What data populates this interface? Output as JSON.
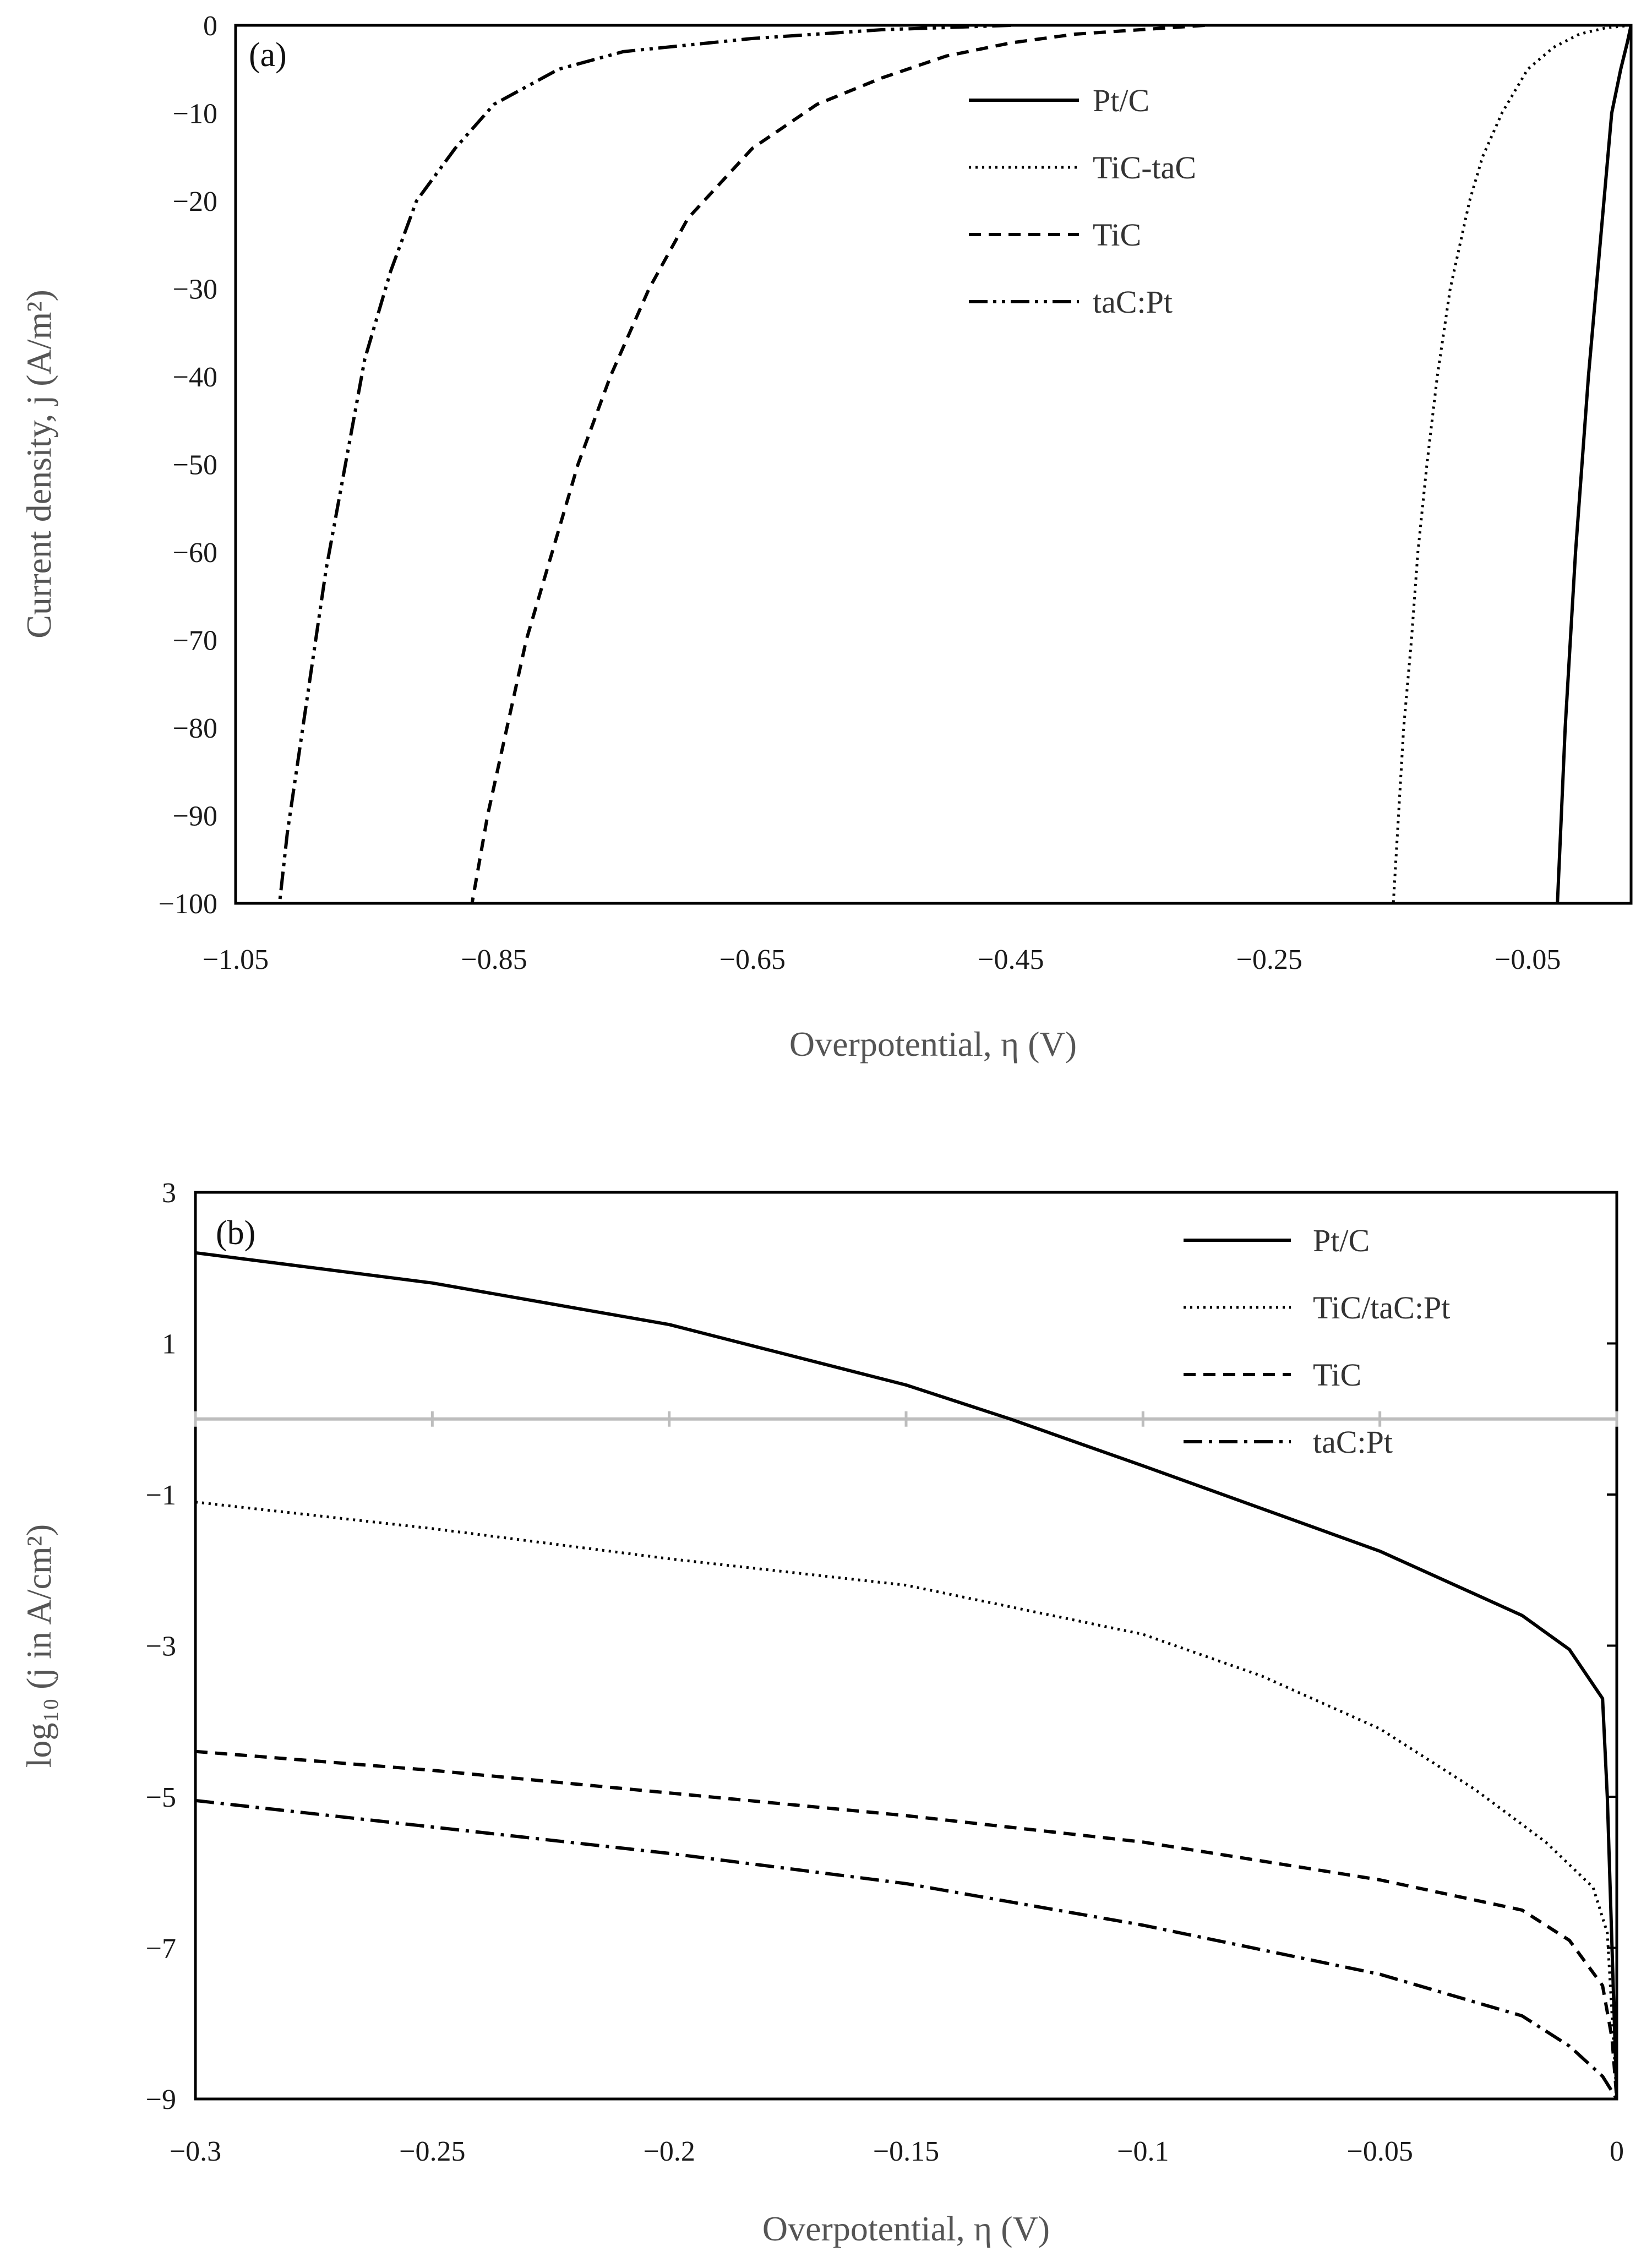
{
  "chart_data": [
    {
      "type": "line",
      "panel_label": "(a)",
      "xlabel": "Overpotential, η (V)",
      "ylabel": "Current density, j (A/m²)",
      "xlim": [
        -1.05,
        0.03
      ],
      "ylim": [
        -100,
        0
      ],
      "x_ticks": [
        -1.05,
        -0.85,
        -0.65,
        -0.45,
        -0.25,
        -0.05
      ],
      "x_tick_labels": [
        "−1.05",
        "−0.85",
        "−0.65",
        "−0.45",
        "−0.25",
        "−0.05"
      ],
      "y_ticks": [
        0,
        -10,
        -20,
        -30,
        -40,
        -50,
        -60,
        -70,
        -80,
        -90,
        -100
      ],
      "y_tick_labels": [
        "0",
        "−10",
        "−20",
        "−30",
        "−40",
        "−50",
        "−60",
        "−70",
        "−80",
        "−90",
        "−100"
      ],
      "grid": false,
      "legend_position": "top-right",
      "series": [
        {
          "name": "Pt/C",
          "style": "solid",
          "points": [
            [
              0.03,
              0
            ],
            [
              0.027,
              -2
            ],
            [
              0.022,
              -5
            ],
            [
              0.015,
              -10
            ],
            [
              0.009,
              -20
            ],
            [
              0.003,
              -30
            ],
            [
              -0.003,
              -40
            ],
            [
              -0.008,
              -50
            ],
            [
              -0.013,
              -60
            ],
            [
              -0.017,
              -70
            ],
            [
              -0.021,
              -80
            ],
            [
              -0.024,
              -90
            ],
            [
              -0.027,
              -100
            ]
          ]
        },
        {
          "name": "TiC-taC",
          "style": "dotted",
          "points": [
            [
              0.03,
              0
            ],
            [
              0.01,
              -0.3
            ],
            [
              -0.01,
              -1
            ],
            [
              -0.03,
              -2.5
            ],
            [
              -0.05,
              -5
            ],
            [
              -0.07,
              -10
            ],
            [
              -0.085,
              -15
            ],
            [
              -0.095,
              -20
            ],
            [
              -0.11,
              -30
            ],
            [
              -0.12,
              -40
            ],
            [
              -0.128,
              -50
            ],
            [
              -0.135,
              -60
            ],
            [
              -0.14,
              -70
            ],
            [
              -0.146,
              -80
            ],
            [
              -0.15,
              -90
            ],
            [
              -0.154,
              -100
            ]
          ]
        },
        {
          "name": "TiC",
          "style": "dashed",
          "points": [
            [
              -0.3,
              0
            ],
            [
              -0.35,
              -0.5
            ],
            [
              -0.4,
              -1
            ],
            [
              -0.45,
              -2
            ],
            [
              -0.5,
              -3.5
            ],
            [
              -0.55,
              -6
            ],
            [
              -0.6,
              -9
            ],
            [
              -0.65,
              -14
            ],
            [
              -0.7,
              -22
            ],
            [
              -0.73,
              -30
            ],
            [
              -0.76,
              -40
            ],
            [
              -0.785,
              -50
            ],
            [
              -0.805,
              -60
            ],
            [
              -0.825,
              -70
            ],
            [
              -0.84,
              -80
            ],
            [
              -0.855,
              -90
            ],
            [
              -0.867,
              -100
            ]
          ]
        },
        {
          "name": "taC:Pt",
          "style": "dashdotdot",
          "points": [
            [
              -0.45,
              0
            ],
            [
              -0.55,
              -0.5
            ],
            [
              -0.65,
              -1.5
            ],
            [
              -0.75,
              -3
            ],
            [
              -0.8,
              -5
            ],
            [
              -0.85,
              -9
            ],
            [
              -0.88,
              -14
            ],
            [
              -0.91,
              -20
            ],
            [
              -0.93,
              -28
            ],
            [
              -0.95,
              -38
            ],
            [
              -0.965,
              -50
            ],
            [
              -0.98,
              -62
            ],
            [
              -0.99,
              -72
            ],
            [
              -1.0,
              -82
            ],
            [
              -1.01,
              -92
            ],
            [
              -1.016,
              -100
            ]
          ]
        }
      ]
    },
    {
      "type": "line",
      "panel_label": "(b)",
      "xlabel": "Overpotential, η (V)",
      "ylabel": "log₁₀ (j in A/cm²)",
      "xlim": [
        -0.3,
        0
      ],
      "ylim": [
        -9,
        3
      ],
      "x_ticks": [
        -0.3,
        -0.25,
        -0.2,
        -0.15,
        -0.1,
        -0.05,
        0
      ],
      "x_tick_labels": [
        "−0.3",
        "−0.25",
        "−0.2",
        "−0.15",
        "−0.1",
        "−0.05",
        "0"
      ],
      "y_ticks": [
        3,
        1,
        -1,
        -3,
        -5,
        -7,
        -9
      ],
      "y_tick_labels": [
        "3",
        "1",
        "−1",
        "−3",
        "−5",
        "−7",
        "−9"
      ],
      "zero_line": 0,
      "grid": false,
      "legend_position": "top-right",
      "series": [
        {
          "name": "Pt/C",
          "style": "solid",
          "points": [
            [
              -0.3,
              2.2
            ],
            [
              -0.25,
              1.8
            ],
            [
              -0.2,
              1.25
            ],
            [
              -0.15,
              0.45
            ],
            [
              -0.128,
              0
            ],
            [
              -0.1,
              -0.62
            ],
            [
              -0.05,
              -1.75
            ],
            [
              -0.02,
              -2.6
            ],
            [
              -0.01,
              -3.05
            ],
            [
              -0.003,
              -3.7
            ],
            [
              -0.002,
              -5
            ],
            [
              -0.001,
              -7
            ],
            [
              0,
              -9
            ]
          ]
        },
        {
          "name": "TiC/taC:Pt",
          "style": "dotted",
          "points": [
            [
              -0.3,
              -1.1
            ],
            [
              -0.25,
              -1.45
            ],
            [
              -0.2,
              -1.85
            ],
            [
              -0.15,
              -2.2
            ],
            [
              -0.1,
              -2.85
            ],
            [
              -0.075,
              -3.4
            ],
            [
              -0.05,
              -4.1
            ],
            [
              -0.03,
              -4.9
            ],
            [
              -0.015,
              -5.6
            ],
            [
              -0.005,
              -6.2
            ],
            [
              -0.002,
              -6.8
            ],
            [
              0,
              -9
            ]
          ]
        },
        {
          "name": "TiC",
          "style": "dashed",
          "points": [
            [
              -0.3,
              -4.4
            ],
            [
              -0.25,
              -4.65
            ],
            [
              -0.2,
              -4.95
            ],
            [
              -0.15,
              -5.25
            ],
            [
              -0.1,
              -5.6
            ],
            [
              -0.05,
              -6.1
            ],
            [
              -0.02,
              -6.5
            ],
            [
              -0.01,
              -6.9
            ],
            [
              -0.003,
              -7.5
            ],
            [
              -0.001,
              -8.2
            ],
            [
              0,
              -9
            ]
          ]
        },
        {
          "name": "taC:Pt",
          "style": "dashdot",
          "points": [
            [
              -0.3,
              -5.05
            ],
            [
              -0.25,
              -5.4
            ],
            [
              -0.2,
              -5.75
            ],
            [
              -0.15,
              -6.15
            ],
            [
              -0.1,
              -6.7
            ],
            [
              -0.05,
              -7.35
            ],
            [
              -0.02,
              -7.9
            ],
            [
              -0.01,
              -8.3
            ],
            [
              -0.003,
              -8.7
            ],
            [
              0,
              -9
            ]
          ]
        }
      ]
    }
  ]
}
